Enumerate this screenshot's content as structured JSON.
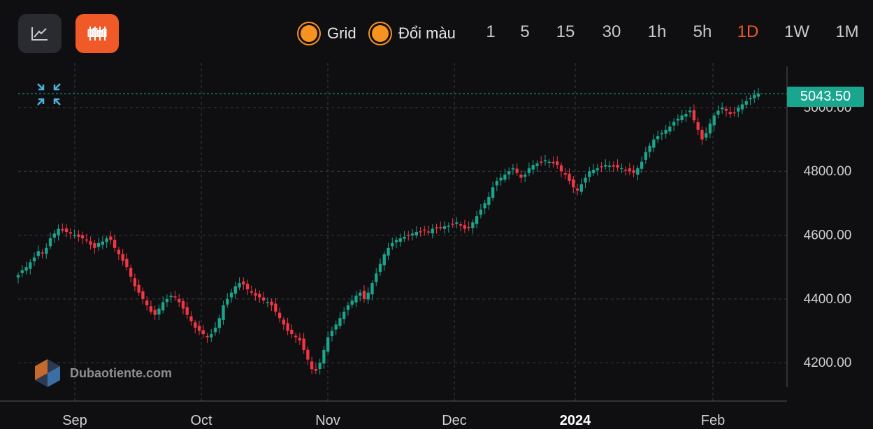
{
  "toolbar": {
    "grid_label": "Grid",
    "color_label": "Đổi màu",
    "timeframes": [
      "1",
      "5",
      "15",
      "30",
      "1h",
      "5h",
      "1D",
      "1W",
      "1M"
    ],
    "active_timeframe": "1D",
    "accent_color": "#f05a28",
    "toggle_color": "#f7931e"
  },
  "watermark": {
    "text": "Dubaotiente.com"
  },
  "last_price": "5043.50",
  "chart_data": {
    "type": "candlestick",
    "x_labels": [
      "Sep",
      "Oct",
      "Nov",
      "Dec",
      "2024",
      "Feb"
    ],
    "y_ticks": [
      "5000.00",
      "4800.00",
      "4600.00",
      "4400.00",
      "4200.00"
    ],
    "ylim": [
      4080,
      5140
    ],
    "up_color": "#1aa58e",
    "down_color": "#f23645",
    "grid": true,
    "series": [
      4475,
      4490,
      4500,
      4515,
      4530,
      4550,
      4545,
      4560,
      4590,
      4605,
      4620,
      4615,
      4610,
      4605,
      4600,
      4595,
      4590,
      4585,
      4570,
      4560,
      4575,
      4580,
      4590,
      4585,
      4560,
      4540,
      4520,
      4500,
      4470,
      4440,
      4420,
      4400,
      4380,
      4360,
      4350,
      4370,
      4390,
      4400,
      4410,
      4405,
      4390,
      4370,
      4350,
      4330,
      4310,
      4300,
      4290,
      4280,
      4290,
      4310,
      4340,
      4380,
      4400,
      4420,
      4440,
      4450,
      4445,
      4430,
      4420,
      4410,
      4405,
      4395,
      4390,
      4380,
      4360,
      4340,
      4320,
      4300,
      4290,
      4280,
      4270,
      4240,
      4210,
      4180,
      4175,
      4200,
      4240,
      4280,
      4300,
      4320,
      4340,
      4360,
      4380,
      4395,
      4410,
      4420,
      4400,
      4420,
      4450,
      4480,
      4510,
      4540,
      4560,
      4575,
      4585,
      4590,
      4595,
      4600,
      4605,
      4610,
      4612,
      4615,
      4610,
      4620,
      4622,
      4625,
      4628,
      4630,
      4635,
      4640,
      4630,
      4620,
      4625,
      4640,
      4660,
      4680,
      4700,
      4720,
      4750,
      4770,
      4780,
      4790,
      4800,
      4810,
      4795,
      4780,
      4790,
      4810,
      4820,
      4825,
      4830,
      4835,
      4830,
      4825,
      4820,
      4800,
      4790,
      4770,
      4750,
      4740,
      4760,
      4780,
      4800,
      4805,
      4810,
      4815,
      4820,
      4818,
      4815,
      4812,
      4810,
      4805,
      4800,
      4795,
      4810,
      4830,
      4860,
      4880,
      4900,
      4910,
      4920,
      4930,
      4940,
      4955,
      4965,
      4975,
      4980,
      4990,
      4960,
      4930,
      4900,
      4920,
      4950,
      4975,
      4990,
      5000,
      4990,
      4980,
      4985,
      5000,
      5010,
      5020,
      5030,
      5040,
      5043.5
    ]
  }
}
